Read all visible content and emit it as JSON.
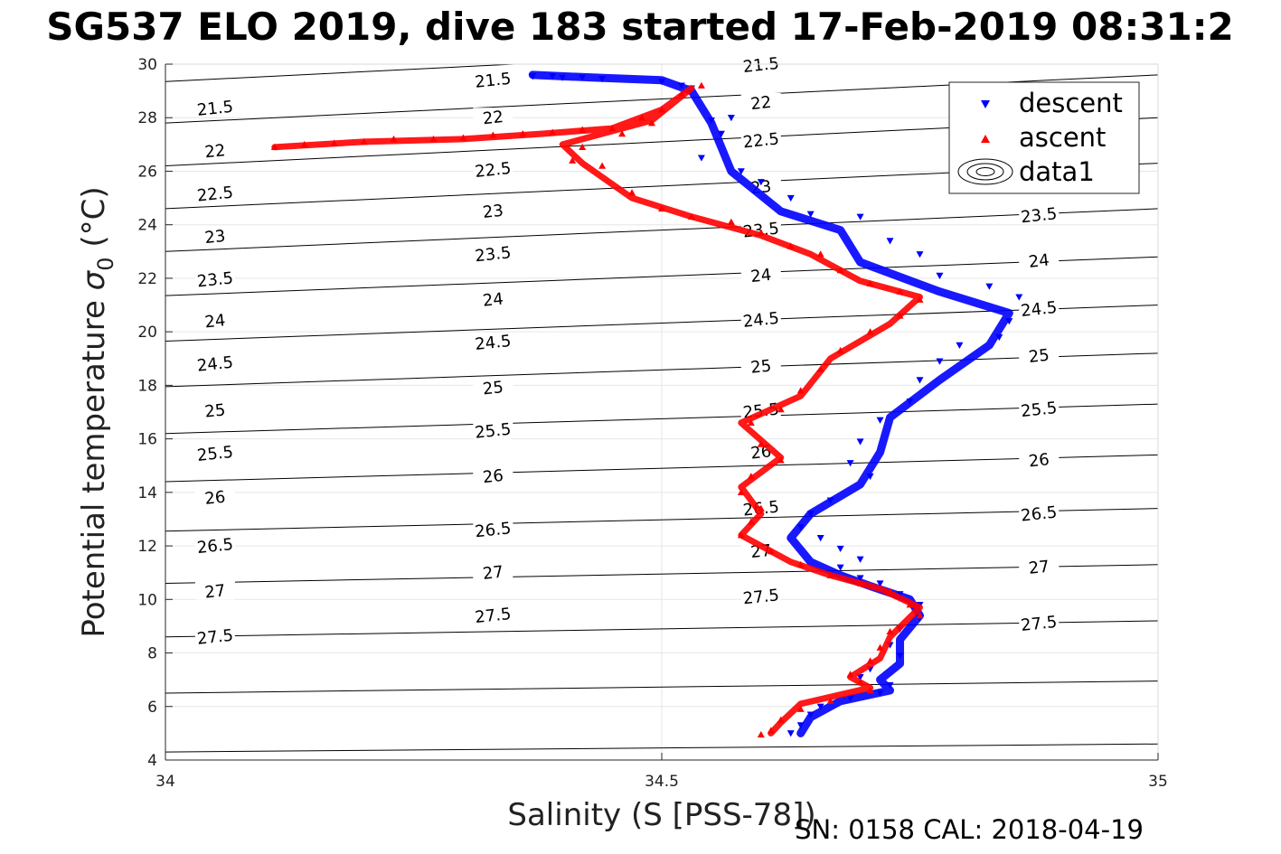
{
  "title": "SG537 ELO 2019, dive 183 started 17-Feb-2019 08:31:2",
  "footer": "SN: 0158  CAL: 2018-04-19",
  "chart_data": {
    "type": "scatter",
    "xlabel": "Salinity (S [PSS-78])",
    "ylabel_main": "Potential temperature ",
    "ylabel_sigma": "σ",
    "ylabel_sub": "0",
    "ylabel_unit": " (°C)",
    "xlim": [
      34,
      35
    ],
    "ylim": [
      4,
      30
    ],
    "xticks": [
      34,
      34.5,
      35
    ],
    "xtick_labels": [
      "34",
      "34.5",
      "35"
    ],
    "yticks": [
      4,
      6,
      8,
      10,
      12,
      14,
      16,
      18,
      20,
      22,
      24,
      26,
      28,
      30
    ],
    "ytick_labels": [
      "4",
      "6",
      "8",
      "10",
      "12",
      "14",
      "16",
      "18",
      "20",
      "22",
      "24",
      "26",
      "28",
      "30"
    ],
    "grid": true,
    "legend": {
      "position": "top-right",
      "entries": [
        {
          "label": "descent",
          "marker": "triangle-down",
          "color": "#0000ff"
        },
        {
          "label": "ascent",
          "marker": "triangle-up",
          "color": "#ff0000"
        },
        {
          "label": "data1",
          "marker": "contour",
          "color": "#000000"
        }
      ]
    },
    "contours": [
      {
        "sigma": 21.5,
        "labels": [
          [
            34.05,
            28.35,
            "21.5"
          ],
          [
            34.33,
            29.4,
            "21.5"
          ],
          [
            34.6,
            29.97,
            "21.5"
          ]
        ]
      },
      {
        "sigma": 22,
        "labels": [
          [
            34.05,
            26.75,
            "22"
          ],
          [
            34.33,
            28.0,
            "22"
          ],
          [
            34.6,
            28.55,
            "22"
          ]
        ]
      },
      {
        "sigma": 22.5,
        "labels": [
          [
            34.05,
            25.15,
            "22.5"
          ],
          [
            34.33,
            26.05,
            "22.5"
          ],
          [
            34.6,
            27.15,
            "22.5"
          ]
        ]
      },
      {
        "sigma": 23,
        "labels": [
          [
            34.05,
            23.55,
            "23"
          ],
          [
            34.33,
            24.5,
            "23"
          ],
          [
            34.6,
            25.4,
            "23"
          ]
        ]
      },
      {
        "sigma": 23.5,
        "labels": [
          [
            34.05,
            21.95,
            "23.5"
          ],
          [
            34.33,
            22.9,
            "23.5"
          ],
          [
            34.6,
            23.8,
            "23.5"
          ],
          [
            34.88,
            24.35,
            "23.5"
          ]
        ]
      },
      {
        "sigma": 24,
        "labels": [
          [
            34.05,
            20.4,
            "24"
          ],
          [
            34.33,
            21.2,
            "24"
          ],
          [
            34.6,
            22.1,
            "24"
          ],
          [
            34.88,
            22.65,
            "24"
          ]
        ]
      },
      {
        "sigma": 24.5,
        "labels": [
          [
            34.05,
            18.8,
            "24.5"
          ],
          [
            34.33,
            19.6,
            "24.5"
          ],
          [
            34.6,
            20.45,
            "24.5"
          ],
          [
            34.88,
            20.85,
            "24.5"
          ]
        ]
      },
      {
        "sigma": 25,
        "labels": [
          [
            34.05,
            17.05,
            "25"
          ],
          [
            34.33,
            17.9,
            "25"
          ],
          [
            34.6,
            18.7,
            "25"
          ],
          [
            34.88,
            19.1,
            "25"
          ]
        ]
      },
      {
        "sigma": 25.5,
        "labels": [
          [
            34.05,
            15.45,
            "25.5"
          ],
          [
            34.33,
            16.3,
            "25.5"
          ],
          [
            34.6,
            17.05,
            "25.5"
          ],
          [
            34.88,
            17.1,
            "25.5"
          ]
        ]
      },
      {
        "sigma": 26,
        "labels": [
          [
            34.05,
            13.8,
            "26"
          ],
          [
            34.33,
            14.6,
            "26"
          ],
          [
            34.6,
            15.5,
            "26"
          ],
          [
            34.88,
            15.2,
            "26"
          ]
        ]
      },
      {
        "sigma": 26.5,
        "labels": [
          [
            34.05,
            12.0,
            "26.5"
          ],
          [
            34.33,
            12.6,
            "26.5"
          ],
          [
            34.6,
            13.4,
            "26.5"
          ],
          [
            34.88,
            13.2,
            "26.5"
          ]
        ]
      },
      {
        "sigma": 27,
        "labels": [
          [
            34.05,
            10.3,
            "27"
          ],
          [
            34.33,
            11.0,
            "27"
          ],
          [
            34.6,
            11.8,
            "27"
          ],
          [
            34.88,
            11.2,
            "27"
          ]
        ]
      },
      {
        "sigma": 27.5,
        "labels": [
          [
            34.05,
            8.6,
            "27.5"
          ],
          [
            34.33,
            9.4,
            "27.5"
          ],
          [
            34.6,
            10.1,
            "27.5"
          ],
          [
            34.88,
            9.1,
            "27.5"
          ]
        ]
      }
    ],
    "contour_lines": [
      [
        [
          34.0,
          29.35
        ],
        [
          35.0,
          31.2
        ]
      ],
      [
        [
          34.0,
          27.8
        ],
        [
          35.0,
          29.6
        ]
      ],
      [
        [
          34.0,
          26.2
        ],
        [
          35.0,
          28.0
        ]
      ],
      [
        [
          34.0,
          24.6
        ],
        [
          35.0,
          26.3
        ]
      ],
      [
        [
          34.0,
          23.0
        ],
        [
          35.0,
          24.6
        ]
      ],
      [
        [
          34.0,
          21.35
        ],
        [
          35.0,
          22.8
        ]
      ],
      [
        [
          34.0,
          19.65
        ],
        [
          35.0,
          21.0
        ]
      ],
      [
        [
          34.0,
          17.95
        ],
        [
          35.0,
          19.2
        ]
      ],
      [
        [
          34.0,
          16.2
        ],
        [
          35.0,
          17.3
        ]
      ],
      [
        [
          34.0,
          14.4
        ],
        [
          35.0,
          15.4
        ]
      ],
      [
        [
          34.0,
          12.55
        ],
        [
          35.0,
          13.4
        ]
      ],
      [
        [
          34.0,
          10.6
        ],
        [
          35.0,
          11.3
        ]
      ],
      [
        [
          34.0,
          8.6
        ],
        [
          35.0,
          9.2
        ]
      ],
      [
        [
          34.0,
          6.5
        ],
        [
          35.0,
          6.95
        ]
      ],
      [
        [
          34.0,
          4.3
        ],
        [
          35.0,
          4.6
        ]
      ]
    ],
    "descent_path": [
      [
        34.37,
        29.6
      ],
      [
        34.43,
        29.5
      ],
      [
        34.5,
        29.4
      ],
      [
        34.53,
        29.0
      ],
      [
        34.55,
        27.8
      ],
      [
        34.57,
        26.0
      ],
      [
        34.62,
        24.5
      ],
      [
        34.68,
        23.8
      ],
      [
        34.7,
        22.6
      ],
      [
        34.78,
        21.5
      ],
      [
        34.85,
        20.7
      ],
      [
        34.83,
        19.5
      ],
      [
        34.78,
        18.2
      ],
      [
        34.73,
        16.8
      ],
      [
        34.72,
        15.5
      ],
      [
        34.7,
        14.3
      ],
      [
        34.65,
        13.2
      ],
      [
        34.63,
        12.3
      ],
      [
        34.65,
        11.4
      ],
      [
        34.68,
        10.9
      ],
      [
        34.71,
        10.5
      ],
      [
        34.75,
        10.0
      ],
      [
        34.76,
        9.4
      ],
      [
        34.74,
        8.5
      ],
      [
        34.74,
        7.6
      ],
      [
        34.72,
        7.0
      ],
      [
        34.73,
        6.6
      ],
      [
        34.68,
        6.2
      ],
      [
        34.65,
        5.6
      ],
      [
        34.64,
        5.0
      ]
    ],
    "ascent_path": [
      [
        34.11,
        26.9
      ],
      [
        34.2,
        27.1
      ],
      [
        34.3,
        27.2
      ],
      [
        34.38,
        27.4
      ],
      [
        34.45,
        27.6
      ],
      [
        34.5,
        28.3
      ],
      [
        34.53,
        29.1
      ],
      [
        34.49,
        27.9
      ],
      [
        34.4,
        27.0
      ],
      [
        34.42,
        26.3
      ],
      [
        34.47,
        25.0
      ],
      [
        34.53,
        24.3
      ],
      [
        34.6,
        23.6
      ],
      [
        34.65,
        22.9
      ],
      [
        34.7,
        21.9
      ],
      [
        34.76,
        21.3
      ],
      [
        34.73,
        20.3
      ],
      [
        34.67,
        19.0
      ],
      [
        34.64,
        17.6
      ],
      [
        34.58,
        16.6
      ],
      [
        34.62,
        15.3
      ],
      [
        34.58,
        14.2
      ],
      [
        34.6,
        13.2
      ],
      [
        34.58,
        12.4
      ],
      [
        34.63,
        11.4
      ],
      [
        34.67,
        10.9
      ],
      [
        34.72,
        10.4
      ],
      [
        34.76,
        9.7
      ],
      [
        34.73,
        8.6
      ],
      [
        34.72,
        7.8
      ],
      [
        34.69,
        7.1
      ],
      [
        34.71,
        6.7
      ],
      [
        34.64,
        6.1
      ],
      [
        34.62,
        5.4
      ],
      [
        34.61,
        5.0
      ]
    ],
    "descent_points": [
      [
        34.37,
        29.55
      ],
      [
        34.39,
        29.55
      ],
      [
        34.4,
        29.5
      ],
      [
        34.42,
        29.5
      ],
      [
        34.44,
        29.45
      ],
      [
        34.5,
        29.35
      ],
      [
        34.52,
        29.2
      ],
      [
        34.53,
        29.1
      ],
      [
        34.55,
        27.9
      ],
      [
        34.57,
        28.0
      ],
      [
        34.56,
        27.4
      ],
      [
        34.54,
        26.5
      ],
      [
        34.58,
        26.0
      ],
      [
        34.6,
        25.6
      ],
      [
        34.63,
        25.0
      ],
      [
        34.65,
        24.4
      ],
      [
        34.7,
        24.3
      ],
      [
        34.73,
        23.4
      ],
      [
        34.76,
        22.9
      ],
      [
        34.78,
        22.1
      ],
      [
        34.83,
        21.7
      ],
      [
        34.86,
        21.3
      ],
      [
        34.85,
        20.4
      ],
      [
        34.84,
        19.8
      ],
      [
        34.8,
        19.5
      ],
      [
        34.78,
        18.9
      ],
      [
        34.76,
        18.2
      ],
      [
        34.75,
        17.4
      ],
      [
        34.72,
        16.7
      ],
      [
        34.7,
        15.9
      ],
      [
        34.69,
        15.1
      ],
      [
        34.71,
        14.6
      ],
      [
        34.67,
        13.7
      ],
      [
        34.65,
        13.2
      ],
      [
        34.64,
        12.7
      ],
      [
        34.66,
        12.3
      ],
      [
        34.68,
        11.9
      ],
      [
        34.7,
        11.5
      ],
      [
        34.68,
        11.2
      ],
      [
        34.7,
        10.8
      ],
      [
        34.72,
        10.6
      ],
      [
        34.74,
        10.2
      ],
      [
        34.76,
        9.8
      ],
      [
        34.76,
        9.3
      ],
      [
        34.74,
        8.9
      ],
      [
        34.73,
        8.3
      ],
      [
        34.74,
        7.9
      ],
      [
        34.71,
        7.4
      ],
      [
        34.7,
        7.1
      ],
      [
        34.73,
        6.8
      ],
      [
        34.72,
        6.5
      ],
      [
        34.69,
        6.3
      ],
      [
        34.66,
        6.0
      ],
      [
        34.65,
        5.7
      ],
      [
        34.64,
        5.3
      ],
      [
        34.63,
        5.0
      ]
    ],
    "ascent_points": [
      [
        34.11,
        26.9
      ],
      [
        34.14,
        27.0
      ],
      [
        34.17,
        27.05
      ],
      [
        34.2,
        27.1
      ],
      [
        34.23,
        27.2
      ],
      [
        34.27,
        27.2
      ],
      [
        34.3,
        27.25
      ],
      [
        34.33,
        27.35
      ],
      [
        34.36,
        27.4
      ],
      [
        34.39,
        27.45
      ],
      [
        34.42,
        27.55
      ],
      [
        34.45,
        27.6
      ],
      [
        34.48,
        28.0
      ],
      [
        34.5,
        28.3
      ],
      [
        34.52,
        28.9
      ],
      [
        34.54,
        29.2
      ],
      [
        34.49,
        27.8
      ],
      [
        34.46,
        27.4
      ],
      [
        34.42,
        26.9
      ],
      [
        34.41,
        26.4
      ],
      [
        34.44,
        26.2
      ],
      [
        34.47,
        25.2
      ],
      [
        34.5,
        24.6
      ],
      [
        34.53,
        24.3
      ],
      [
        34.57,
        24.1
      ],
      [
        34.6,
        23.7
      ],
      [
        34.63,
        23.2
      ],
      [
        34.66,
        22.9
      ],
      [
        34.68,
        22.3
      ],
      [
        34.71,
        21.8
      ],
      [
        34.74,
        21.5
      ],
      [
        34.76,
        21.2
      ],
      [
        34.74,
        20.6
      ],
      [
        34.71,
        20.0
      ],
      [
        34.68,
        19.3
      ],
      [
        34.66,
        18.6
      ],
      [
        34.64,
        17.8
      ],
      [
        34.62,
        17.1
      ],
      [
        34.59,
        16.6
      ],
      [
        34.6,
        15.8
      ],
      [
        34.62,
        15.2
      ],
      [
        34.59,
        14.6
      ],
      [
        34.58,
        14.0
      ],
      [
        34.6,
        13.4
      ],
      [
        34.59,
        12.9
      ],
      [
        34.58,
        12.4
      ],
      [
        34.61,
        11.8
      ],
      [
        34.64,
        11.3
      ],
      [
        34.67,
        10.9
      ],
      [
        34.7,
        10.6
      ],
      [
        34.73,
        10.3
      ],
      [
        34.75,
        9.8
      ],
      [
        34.76,
        9.4
      ],
      [
        34.73,
        8.8
      ],
      [
        34.72,
        8.2
      ],
      [
        34.71,
        7.7
      ],
      [
        34.69,
        7.2
      ],
      [
        34.7,
        6.9
      ],
      [
        34.71,
        6.6
      ],
      [
        34.67,
        6.2
      ],
      [
        34.64,
        5.9
      ],
      [
        34.62,
        5.5
      ],
      [
        34.61,
        5.1
      ],
      [
        34.6,
        4.95
      ]
    ]
  }
}
